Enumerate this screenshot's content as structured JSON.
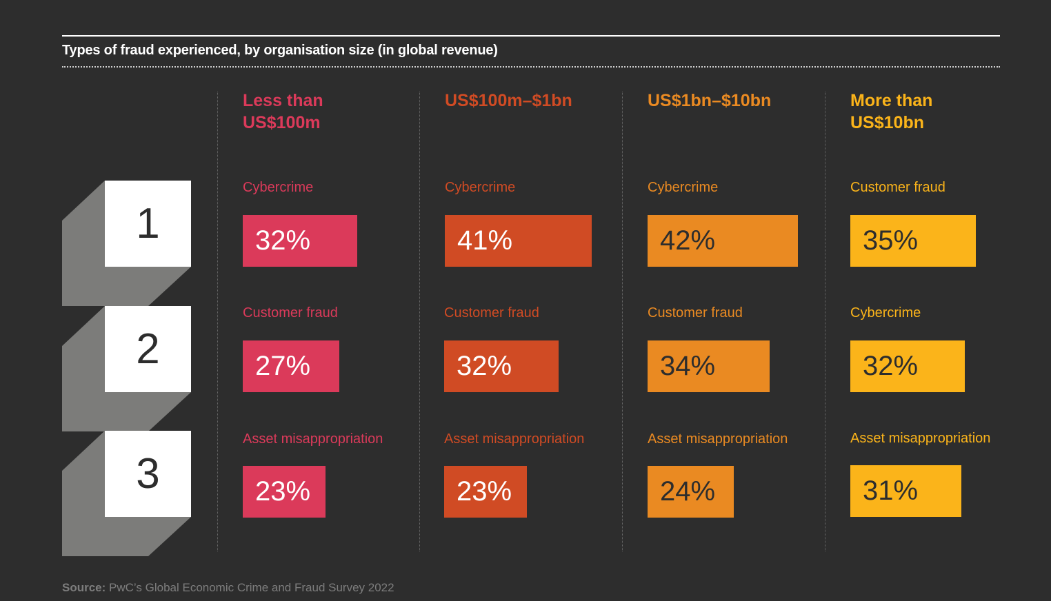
{
  "title": "Types of fraud experienced, by organisation size (in global revenue)",
  "source": {
    "label": "Source:",
    "text": "PwC’s Global Economic Crime and Fraud Survey 2022"
  },
  "ranks": [
    "1",
    "2",
    "3"
  ],
  "chart_data": {
    "type": "bar",
    "title": "Types of fraud experienced, by organisation size (in global revenue)",
    "unit": "%",
    "groups": [
      {
        "name": "Less than\nUS$100m",
        "color": "#db3a5a",
        "items": [
          {
            "rank": 1,
            "label": "Cybercrime",
            "value": 32,
            "display": "32%"
          },
          {
            "rank": 2,
            "label": "Customer fraud",
            "value": 27,
            "display": "27%"
          },
          {
            "rank": 3,
            "label": "Asset misappropriation",
            "value": 23,
            "display": "23%"
          }
        ]
      },
      {
        "name": "US$100m–$1bn",
        "color": "#d04b24",
        "items": [
          {
            "rank": 1,
            "label": "Cybercrime",
            "value": 41,
            "display": "41%"
          },
          {
            "rank": 2,
            "label": "Customer fraud",
            "value": 32,
            "display": "32%"
          },
          {
            "rank": 3,
            "label": "Asset misappropriation",
            "value": 23,
            "display": "23%"
          }
        ]
      },
      {
        "name": "US$1bn–$10bn",
        "color": "#ea8a22",
        "items": [
          {
            "rank": 1,
            "label": "Cybercrime",
            "value": 42,
            "display": "42%"
          },
          {
            "rank": 2,
            "label": "Customer fraud",
            "value": 34,
            "display": "34%"
          },
          {
            "rank": 3,
            "label": "Asset misappropriation",
            "value": 24,
            "display": "24%"
          }
        ]
      },
      {
        "name": "More than\nUS$10bn",
        "color": "#fbb41a",
        "items": [
          {
            "rank": 1,
            "label": "Customer fraud",
            "value": 35,
            "display": "35%"
          },
          {
            "rank": 2,
            "label": "Cybercrime",
            "value": 32,
            "display": "32%"
          },
          {
            "rank": 3,
            "label": "Asset misappropriation",
            "value": 31,
            "display": "31%"
          }
        ]
      }
    ]
  }
}
